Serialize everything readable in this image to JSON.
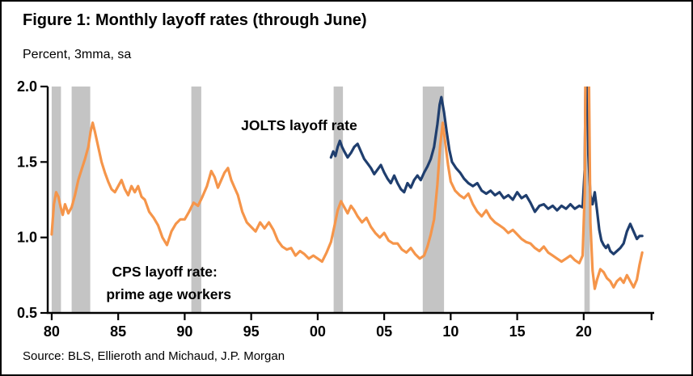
{
  "chart_data": {
    "type": "line",
    "title": "Figure 1: Monthly layoff rates (through June)",
    "subtitle": "Percent, 3mma, sa",
    "source": "Source: BLS, Ellieroth and Michaud, J.P. Morgan",
    "xlabel": "",
    "ylabel": "Percent, 3mma, sa",
    "xlim": [
      1979.7,
      2025.3
    ],
    "ylim": [
      0.5,
      2.0
    ],
    "grid": false,
    "legend_position": "inline-annotations",
    "colors": {
      "jolts": "#1F3E6E",
      "cps": "#F5954A",
      "recession": "#C4C4C4",
      "axis": "#000000"
    },
    "y_ticks": [
      {
        "v": 0.5,
        "label": "0.5"
      },
      {
        "v": 1.0,
        "label": "1.0"
      },
      {
        "v": 1.5,
        "label": "1.5"
      },
      {
        "v": 2.0,
        "label": "2.0"
      }
    ],
    "x_ticks": [
      {
        "v": 1980,
        "label": "80"
      },
      {
        "v": 1985,
        "label": "85"
      },
      {
        "v": 1990,
        "label": "90"
      },
      {
        "v": 1995,
        "label": "95"
      },
      {
        "v": 2000,
        "label": "00"
      },
      {
        "v": 2005,
        "label": "05"
      },
      {
        "v": 2010,
        "label": "10"
      },
      {
        "v": 2015,
        "label": "15"
      },
      {
        "v": 2020,
        "label": "20"
      },
      {
        "v": 2025.1,
        "label": ""
      }
    ],
    "recession_bands": [
      [
        1980.0,
        1980.7
      ],
      [
        1981.5,
        1982.9
      ],
      [
        1990.5,
        1991.25
      ],
      [
        2001.2,
        2001.9
      ],
      [
        2007.9,
        2009.5
      ],
      [
        2020.05,
        2020.45
      ]
    ],
    "annotations": [
      {
        "name": "jolts-series-label",
        "text": "JOLTS layoff rate",
        "x": 1998.6,
        "y": 1.71
      },
      {
        "name": "cps-series-label-line1",
        "text": "CPS layoff rate:",
        "x": 1988.5,
        "y": 0.74
      },
      {
        "name": "cps-series-label-line2",
        "text": "prime age workers",
        "x": 1988.8,
        "y": 0.59
      }
    ],
    "series": [
      {
        "id": "jolts",
        "name": "JOLTS layoff rate",
        "color": "#1F3E6E",
        "points": [
          [
            2001.0,
            1.53
          ],
          [
            2001.17,
            1.57
          ],
          [
            2001.33,
            1.54
          ],
          [
            2001.5,
            1.6
          ],
          [
            2001.67,
            1.64
          ],
          [
            2001.83,
            1.6
          ],
          [
            2002.0,
            1.57
          ],
          [
            2002.25,
            1.53
          ],
          [
            2002.5,
            1.56
          ],
          [
            2002.75,
            1.6
          ],
          [
            2003.0,
            1.62
          ],
          [
            2003.25,
            1.57
          ],
          [
            2003.5,
            1.52
          ],
          [
            2003.75,
            1.49
          ],
          [
            2004.0,
            1.46
          ],
          [
            2004.25,
            1.42
          ],
          [
            2004.5,
            1.45
          ],
          [
            2004.75,
            1.48
          ],
          [
            2005.0,
            1.43
          ],
          [
            2005.25,
            1.39
          ],
          [
            2005.5,
            1.36
          ],
          [
            2005.75,
            1.41
          ],
          [
            2006.0,
            1.36
          ],
          [
            2006.25,
            1.32
          ],
          [
            2006.5,
            1.3
          ],
          [
            2006.75,
            1.36
          ],
          [
            2007.0,
            1.33
          ],
          [
            2007.25,
            1.38
          ],
          [
            2007.5,
            1.41
          ],
          [
            2007.75,
            1.38
          ],
          [
            2008.0,
            1.43
          ],
          [
            2008.25,
            1.47
          ],
          [
            2008.5,
            1.52
          ],
          [
            2008.75,
            1.6
          ],
          [
            2009.0,
            1.75
          ],
          [
            2009.17,
            1.88
          ],
          [
            2009.3,
            1.93
          ],
          [
            2009.5,
            1.83
          ],
          [
            2009.7,
            1.7
          ],
          [
            2009.9,
            1.58
          ],
          [
            2010.1,
            1.5
          ],
          [
            2010.4,
            1.46
          ],
          [
            2010.7,
            1.43
          ],
          [
            2011.0,
            1.39
          ],
          [
            2011.33,
            1.36
          ],
          [
            2011.67,
            1.34
          ],
          [
            2012.0,
            1.36
          ],
          [
            2012.33,
            1.31
          ],
          [
            2012.67,
            1.29
          ],
          [
            2013.0,
            1.31
          ],
          [
            2013.33,
            1.28
          ],
          [
            2013.67,
            1.3
          ],
          [
            2014.0,
            1.26
          ],
          [
            2014.33,
            1.28
          ],
          [
            2014.67,
            1.25
          ],
          [
            2015.0,
            1.3
          ],
          [
            2015.33,
            1.26
          ],
          [
            2015.67,
            1.28
          ],
          [
            2016.0,
            1.23
          ],
          [
            2016.33,
            1.17
          ],
          [
            2016.67,
            1.21
          ],
          [
            2017.0,
            1.22
          ],
          [
            2017.33,
            1.19
          ],
          [
            2017.67,
            1.21
          ],
          [
            2018.0,
            1.18
          ],
          [
            2018.33,
            1.21
          ],
          [
            2018.67,
            1.19
          ],
          [
            2019.0,
            1.22
          ],
          [
            2019.33,
            1.19
          ],
          [
            2019.67,
            1.21
          ],
          [
            2019.92,
            1.2
          ],
          [
            2020.08,
            1.45
          ],
          [
            2020.2,
            2.6
          ],
          [
            2020.35,
            1.55
          ],
          [
            2020.5,
            1.28
          ],
          [
            2020.67,
            1.22
          ],
          [
            2020.83,
            1.3
          ],
          [
            2021.0,
            1.18
          ],
          [
            2021.17,
            1.05
          ],
          [
            2021.33,
            0.98
          ],
          [
            2021.5,
            0.95
          ],
          [
            2021.67,
            0.93
          ],
          [
            2021.83,
            0.95
          ],
          [
            2022.0,
            0.91
          ],
          [
            2022.25,
            0.89
          ],
          [
            2022.5,
            0.91
          ],
          [
            2022.75,
            0.93
          ],
          [
            2023.0,
            0.96
          ],
          [
            2023.25,
            1.04
          ],
          [
            2023.5,
            1.09
          ],
          [
            2023.75,
            1.04
          ],
          [
            2024.0,
            0.99
          ],
          [
            2024.2,
            1.01
          ],
          [
            2024.4,
            1.01
          ]
        ]
      },
      {
        "id": "cps",
        "name": "CPS layoff rate: prime age workers",
        "color": "#F5954A",
        "points": [
          [
            1980.0,
            1.02
          ],
          [
            1980.17,
            1.22
          ],
          [
            1980.33,
            1.3
          ],
          [
            1980.5,
            1.27
          ],
          [
            1980.67,
            1.2
          ],
          [
            1980.83,
            1.15
          ],
          [
            1981.0,
            1.22
          ],
          [
            1981.25,
            1.16
          ],
          [
            1981.5,
            1.2
          ],
          [
            1981.75,
            1.28
          ],
          [
            1982.0,
            1.38
          ],
          [
            1982.25,
            1.45
          ],
          [
            1982.5,
            1.52
          ],
          [
            1982.75,
            1.6
          ],
          [
            1982.92,
            1.7
          ],
          [
            1983.08,
            1.76
          ],
          [
            1983.25,
            1.7
          ],
          [
            1983.5,
            1.6
          ],
          [
            1983.75,
            1.5
          ],
          [
            1984.0,
            1.43
          ],
          [
            1984.25,
            1.37
          ],
          [
            1984.5,
            1.32
          ],
          [
            1984.75,
            1.3
          ],
          [
            1985.0,
            1.34
          ],
          [
            1985.25,
            1.38
          ],
          [
            1985.5,
            1.32
          ],
          [
            1985.75,
            1.28
          ],
          [
            1986.0,
            1.34
          ],
          [
            1986.25,
            1.3
          ],
          [
            1986.5,
            1.34
          ],
          [
            1986.75,
            1.27
          ],
          [
            1987.0,
            1.25
          ],
          [
            1987.33,
            1.17
          ],
          [
            1987.67,
            1.13
          ],
          [
            1988.0,
            1.08
          ],
          [
            1988.33,
            1.0
          ],
          [
            1988.67,
            0.95
          ],
          [
            1989.0,
            1.04
          ],
          [
            1989.33,
            1.09
          ],
          [
            1989.67,
            1.12
          ],
          [
            1990.0,
            1.12
          ],
          [
            1990.33,
            1.17
          ],
          [
            1990.67,
            1.23
          ],
          [
            1991.0,
            1.21
          ],
          [
            1991.33,
            1.27
          ],
          [
            1991.67,
            1.34
          ],
          [
            1992.0,
            1.44
          ],
          [
            1992.25,
            1.4
          ],
          [
            1992.5,
            1.33
          ],
          [
            1992.75,
            1.38
          ],
          [
            1993.0,
            1.43
          ],
          [
            1993.25,
            1.46
          ],
          [
            1993.5,
            1.38
          ],
          [
            1993.75,
            1.33
          ],
          [
            1994.0,
            1.28
          ],
          [
            1994.33,
            1.17
          ],
          [
            1994.67,
            1.1
          ],
          [
            1995.0,
            1.07
          ],
          [
            1995.33,
            1.04
          ],
          [
            1995.67,
            1.1
          ],
          [
            1996.0,
            1.06
          ],
          [
            1996.33,
            1.1
          ],
          [
            1996.67,
            1.05
          ],
          [
            1997.0,
            0.98
          ],
          [
            1997.33,
            0.94
          ],
          [
            1997.67,
            0.92
          ],
          [
            1998.0,
            0.93
          ],
          [
            1998.33,
            0.88
          ],
          [
            1998.67,
            0.91
          ],
          [
            1999.0,
            0.89
          ],
          [
            1999.33,
            0.86
          ],
          [
            1999.67,
            0.88
          ],
          [
            2000.0,
            0.86
          ],
          [
            2000.33,
            0.84
          ],
          [
            2000.67,
            0.9
          ],
          [
            2001.0,
            0.97
          ],
          [
            2001.25,
            1.07
          ],
          [
            2001.5,
            1.18
          ],
          [
            2001.75,
            1.24
          ],
          [
            2002.0,
            1.2
          ],
          [
            2002.25,
            1.16
          ],
          [
            2002.5,
            1.21
          ],
          [
            2002.75,
            1.18
          ],
          [
            2003.0,
            1.14
          ],
          [
            2003.33,
            1.1
          ],
          [
            2003.67,
            1.13
          ],
          [
            2004.0,
            1.07
          ],
          [
            2004.33,
            1.03
          ],
          [
            2004.67,
            1.0
          ],
          [
            2005.0,
            1.03
          ],
          [
            2005.33,
            0.98
          ],
          [
            2005.67,
            0.96
          ],
          [
            2006.0,
            0.96
          ],
          [
            2006.33,
            0.92
          ],
          [
            2006.67,
            0.9
          ],
          [
            2007.0,
            0.93
          ],
          [
            2007.33,
            0.89
          ],
          [
            2007.67,
            0.86
          ],
          [
            2008.0,
            0.88
          ],
          [
            2008.25,
            0.94
          ],
          [
            2008.5,
            1.02
          ],
          [
            2008.75,
            1.12
          ],
          [
            2009.0,
            1.35
          ],
          [
            2009.2,
            1.6
          ],
          [
            2009.4,
            1.76
          ],
          [
            2009.6,
            1.62
          ],
          [
            2009.8,
            1.48
          ],
          [
            2010.0,
            1.37
          ],
          [
            2010.33,
            1.31
          ],
          [
            2010.67,
            1.28
          ],
          [
            2011.0,
            1.26
          ],
          [
            2011.33,
            1.29
          ],
          [
            2011.67,
            1.22
          ],
          [
            2012.0,
            1.17
          ],
          [
            2012.33,
            1.14
          ],
          [
            2012.67,
            1.18
          ],
          [
            2013.0,
            1.13
          ],
          [
            2013.33,
            1.1
          ],
          [
            2013.67,
            1.08
          ],
          [
            2014.0,
            1.06
          ],
          [
            2014.33,
            1.03
          ],
          [
            2014.67,
            1.05
          ],
          [
            2015.0,
            1.02
          ],
          [
            2015.33,
            0.99
          ],
          [
            2015.67,
            0.97
          ],
          [
            2016.0,
            0.96
          ],
          [
            2016.33,
            0.93
          ],
          [
            2016.67,
            0.91
          ],
          [
            2017.0,
            0.94
          ],
          [
            2017.33,
            0.9
          ],
          [
            2017.67,
            0.88
          ],
          [
            2018.0,
            0.86
          ],
          [
            2018.33,
            0.84
          ],
          [
            2018.67,
            0.86
          ],
          [
            2019.0,
            0.88
          ],
          [
            2019.33,
            0.85
          ],
          [
            2019.67,
            0.83
          ],
          [
            2019.92,
            0.88
          ],
          [
            2020.08,
            1.3
          ],
          [
            2020.17,
            2.6
          ],
          [
            2020.33,
            2.6
          ],
          [
            2020.5,
            1.1
          ],
          [
            2020.67,
            0.78
          ],
          [
            2020.83,
            0.66
          ],
          [
            2021.0,
            0.72
          ],
          [
            2021.25,
            0.79
          ],
          [
            2021.5,
            0.77
          ],
          [
            2021.75,
            0.73
          ],
          [
            2022.0,
            0.71
          ],
          [
            2022.25,
            0.67
          ],
          [
            2022.5,
            0.71
          ],
          [
            2022.75,
            0.73
          ],
          [
            2023.0,
            0.7
          ],
          [
            2023.25,
            0.75
          ],
          [
            2023.5,
            0.71
          ],
          [
            2023.75,
            0.67
          ],
          [
            2024.0,
            0.72
          ],
          [
            2024.2,
            0.82
          ],
          [
            2024.4,
            0.9
          ]
        ]
      }
    ]
  }
}
